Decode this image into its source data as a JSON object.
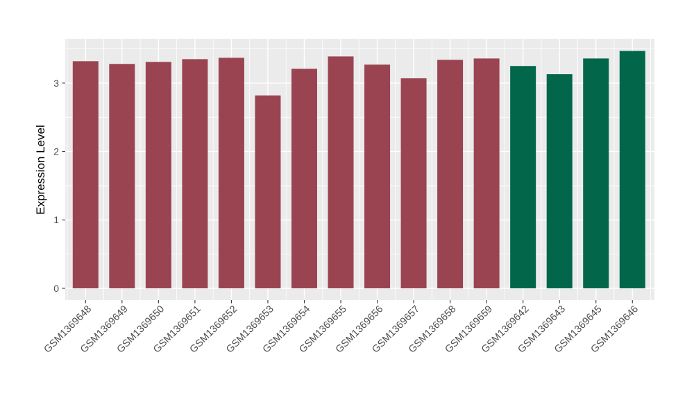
{
  "chart_data": {
    "type": "bar",
    "title": "",
    "xlabel": "",
    "ylabel": "Expression Level",
    "categories": [
      "GSM1369648",
      "GSM1369649",
      "GSM1369650",
      "GSM1369651",
      "GSM1369652",
      "GSM1369653",
      "GSM1369654",
      "GSM1369655",
      "GSM1369656",
      "GSM1369657",
      "GSM1369658",
      "GSM1369659",
      "GSM1369642",
      "GSM1369643",
      "GSM1369645",
      "GSM1369646"
    ],
    "values": [
      3.32,
      3.28,
      3.31,
      3.35,
      3.37,
      2.82,
      3.21,
      3.39,
      3.27,
      3.07,
      3.34,
      3.36,
      3.25,
      3.13,
      3.36,
      3.47
    ],
    "bar_groups": [
      "maroon",
      "maroon",
      "maroon",
      "maroon",
      "maroon",
      "maroon",
      "maroon",
      "maroon",
      "maroon",
      "maroon",
      "maroon",
      "maroon",
      "green",
      "green",
      "green",
      "green"
    ],
    "colors": {
      "maroon": "#9A4451",
      "green": "#02664A"
    },
    "yticks": [
      "0",
      "1",
      "2",
      "3"
    ],
    "ytick_values": [
      0,
      1,
      2,
      3
    ],
    "ylim": [
      -0.17,
      3.64
    ],
    "grid": "major-and-minor",
    "legend_position": "none",
    "panel_bg": "#EBEBEB",
    "grid_color": "#FFFFFF",
    "figure_bg": "#FFFFFF",
    "tick_label_color": "#4D4D4D",
    "axis_title_color": "#000000",
    "tick_mark_color": "#333333"
  }
}
